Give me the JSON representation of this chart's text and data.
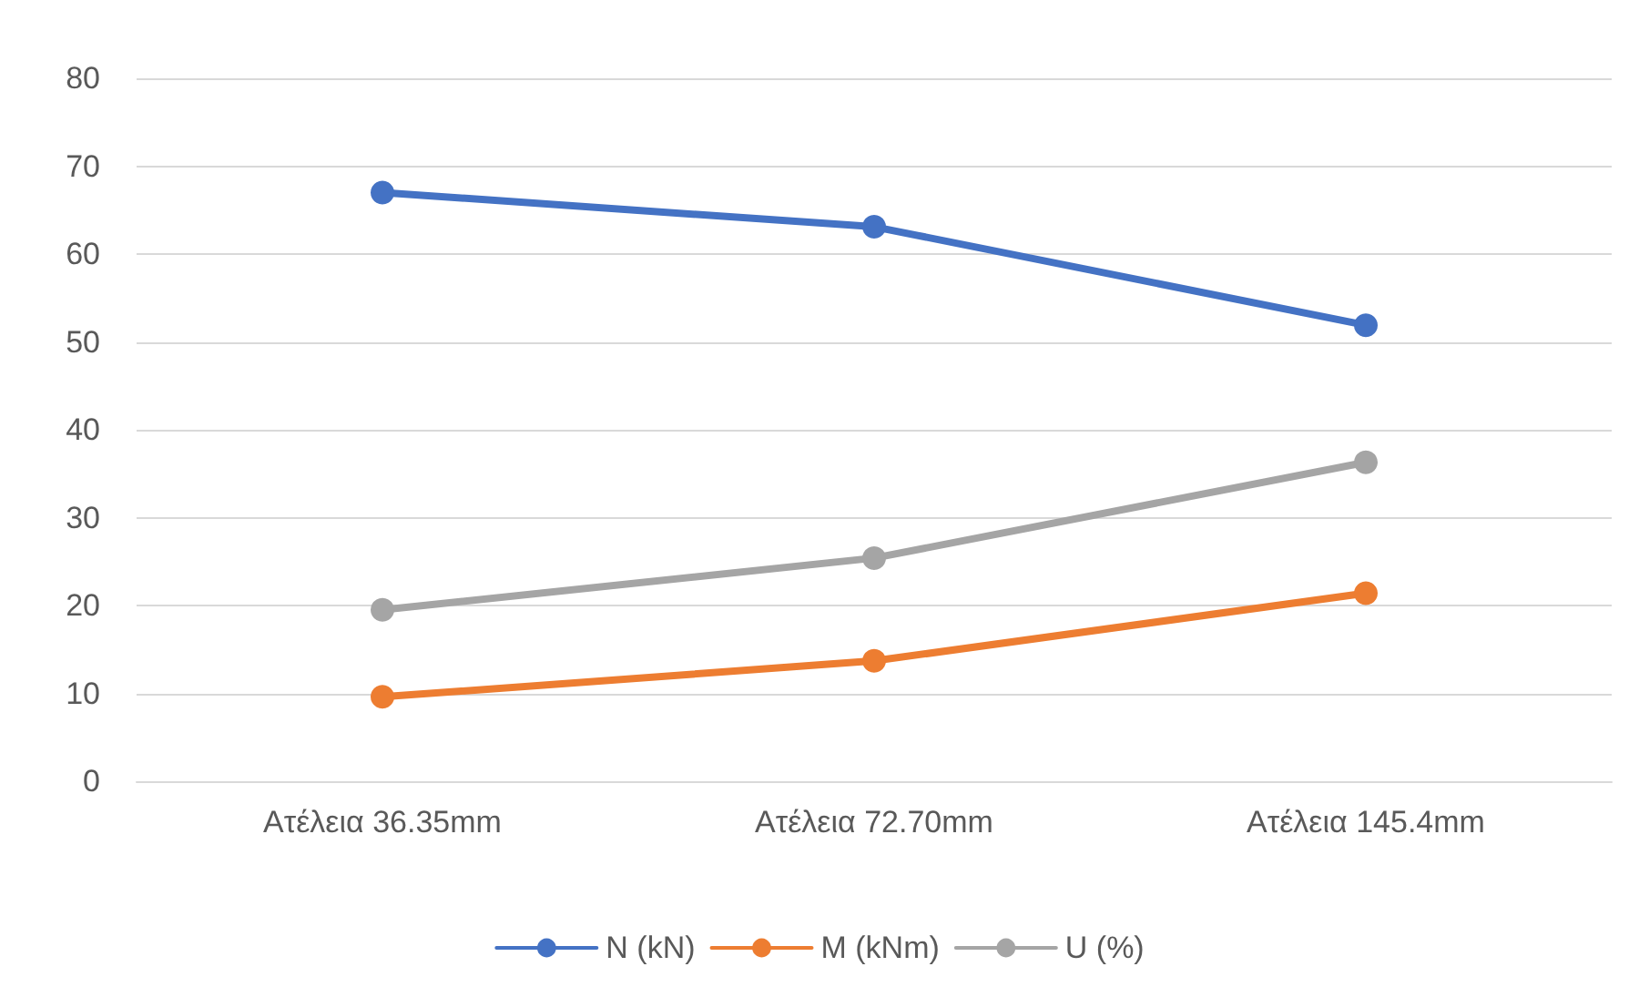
{
  "chart_data": {
    "type": "line",
    "categories": [
      "Ατέλεια 36.35mm",
      "Ατέλεια 72.70mm",
      "Ατέλεια 145.4mm"
    ],
    "series": [
      {
        "name": "N (kN)",
        "color": "#4472c4",
        "values": [
          67,
          63.1,
          51.9
        ]
      },
      {
        "name": "M (kNm)",
        "color": "#ed7d31",
        "values": [
          9.6,
          13.7,
          21.4
        ]
      },
      {
        "name": "U (%)",
        "color": "#a5a5a5",
        "values": [
          19.5,
          25.4,
          36.3
        ]
      }
    ],
    "ylim": [
      0,
      80
    ],
    "yticks": [
      0,
      10,
      20,
      30,
      40,
      50,
      60,
      70,
      80
    ],
    "grid": "y",
    "legend": "bottom",
    "marker": "circle",
    "line_style": "solid"
  }
}
